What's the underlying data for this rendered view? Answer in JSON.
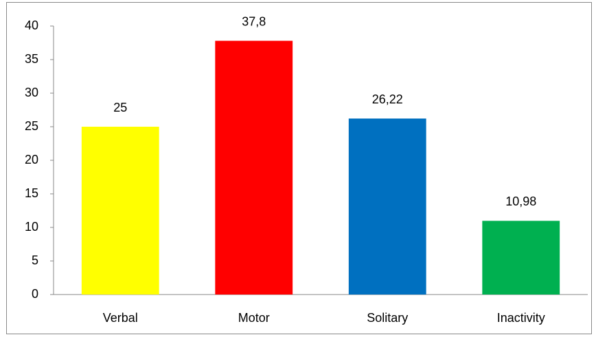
{
  "chart_data": {
    "type": "bar",
    "categories": [
      "Verbal",
      "Motor",
      "Solitary",
      "Inactivity"
    ],
    "values": [
      25,
      37.8,
      26.22,
      10.98
    ],
    "value_labels": [
      "25",
      "37,8",
      "26,22",
      "10,98"
    ],
    "colors": [
      "#ffff00",
      "#ff0000",
      "#0070c0",
      "#00b050"
    ],
    "ylim": [
      0,
      40
    ],
    "yticks": [
      0,
      5,
      10,
      15,
      20,
      25,
      30,
      35,
      40
    ],
    "grid": false
  }
}
